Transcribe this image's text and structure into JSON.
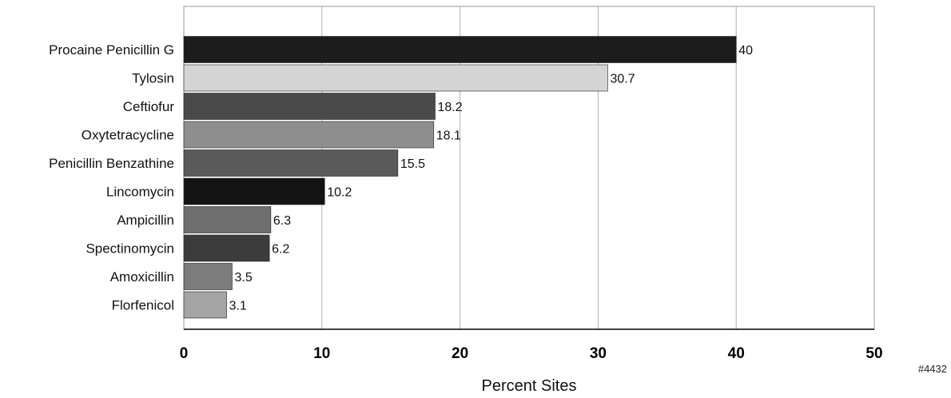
{
  "chart_data": {
    "type": "bar",
    "orientation": "horizontal",
    "categories": [
      "Procaine Penicillin G",
      "Tylosin",
      "Ceftiofur",
      "Oxytetracycline",
      "Penicillin Benzathine",
      "Lincomycin",
      "Ampicillin",
      "Spectinomycin",
      "Amoxicillin",
      "Florfenicol"
    ],
    "values": [
      40,
      30.7,
      18.2,
      18.1,
      15.5,
      10.2,
      6.3,
      6.2,
      3.5,
      3.1
    ],
    "value_labels": [
      "40",
      "30.7",
      "18.2",
      "18.1",
      "15.5",
      "10.2",
      "6.3",
      "6.2",
      "3.5",
      "3.1"
    ],
    "bar_colors": [
      "#1c1c1c",
      "#d4d4d4",
      "#4a4a4a",
      "#8e8e8e",
      "#5a5a5a",
      "#141414",
      "#6e6e6e",
      "#3c3c3c",
      "#7c7c7c",
      "#a4a4a4"
    ],
    "xlabel": "Percent Sites",
    "ylabel": "",
    "xlim": [
      0,
      50
    ],
    "x_ticks": [
      0,
      10,
      20,
      30,
      40,
      50
    ],
    "x_tick_labels": [
      "0",
      "10",
      "20",
      "30",
      "40",
      "50"
    ],
    "grid": "vertical",
    "legend": "none"
  },
  "figure_code": "#4432"
}
